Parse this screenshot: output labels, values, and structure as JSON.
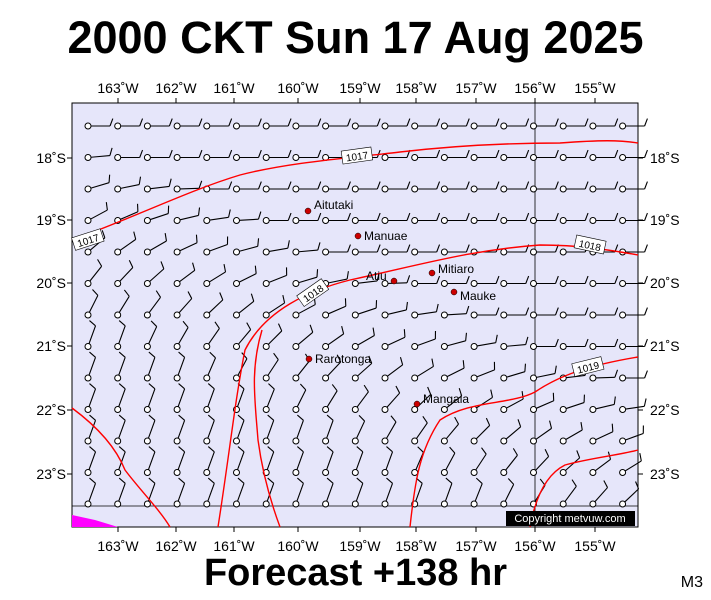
{
  "header": {
    "title": "2000 CKT Sun 17 Aug 2025"
  },
  "footer": {
    "forecast": "Forecast +138 hr",
    "model": "M3"
  },
  "map": {
    "colors": {
      "background": "#e6e6fa",
      "isobar": "#ff0000",
      "place": "#cc0000",
      "land_patch": "#ff00ff"
    },
    "longitude_labels": [
      "163˚W",
      "162˚W",
      "161˚W",
      "160˚W",
      "159˚W",
      "158˚W",
      "157˚W",
      "156˚W",
      "155˚W"
    ],
    "latitude_labels": [
      "18˚S",
      "19˚S",
      "20˚S",
      "21˚S",
      "22˚S",
      "23˚S"
    ],
    "places": [
      {
        "name": "Aitutaki"
      },
      {
        "name": "Manuae"
      },
      {
        "name": "Mitiaro"
      },
      {
        "name": "Atiu"
      },
      {
        "name": "Mauke"
      },
      {
        "name": "Rarotonga"
      },
      {
        "name": "Mangaia"
      }
    ],
    "isobars": [
      {
        "label": "1017"
      },
      {
        "label": "1017"
      },
      {
        "label": "1018"
      },
      {
        "label": "1018"
      },
      {
        "label": "1019"
      }
    ],
    "copyright": "Copyright metvuw.com"
  }
}
